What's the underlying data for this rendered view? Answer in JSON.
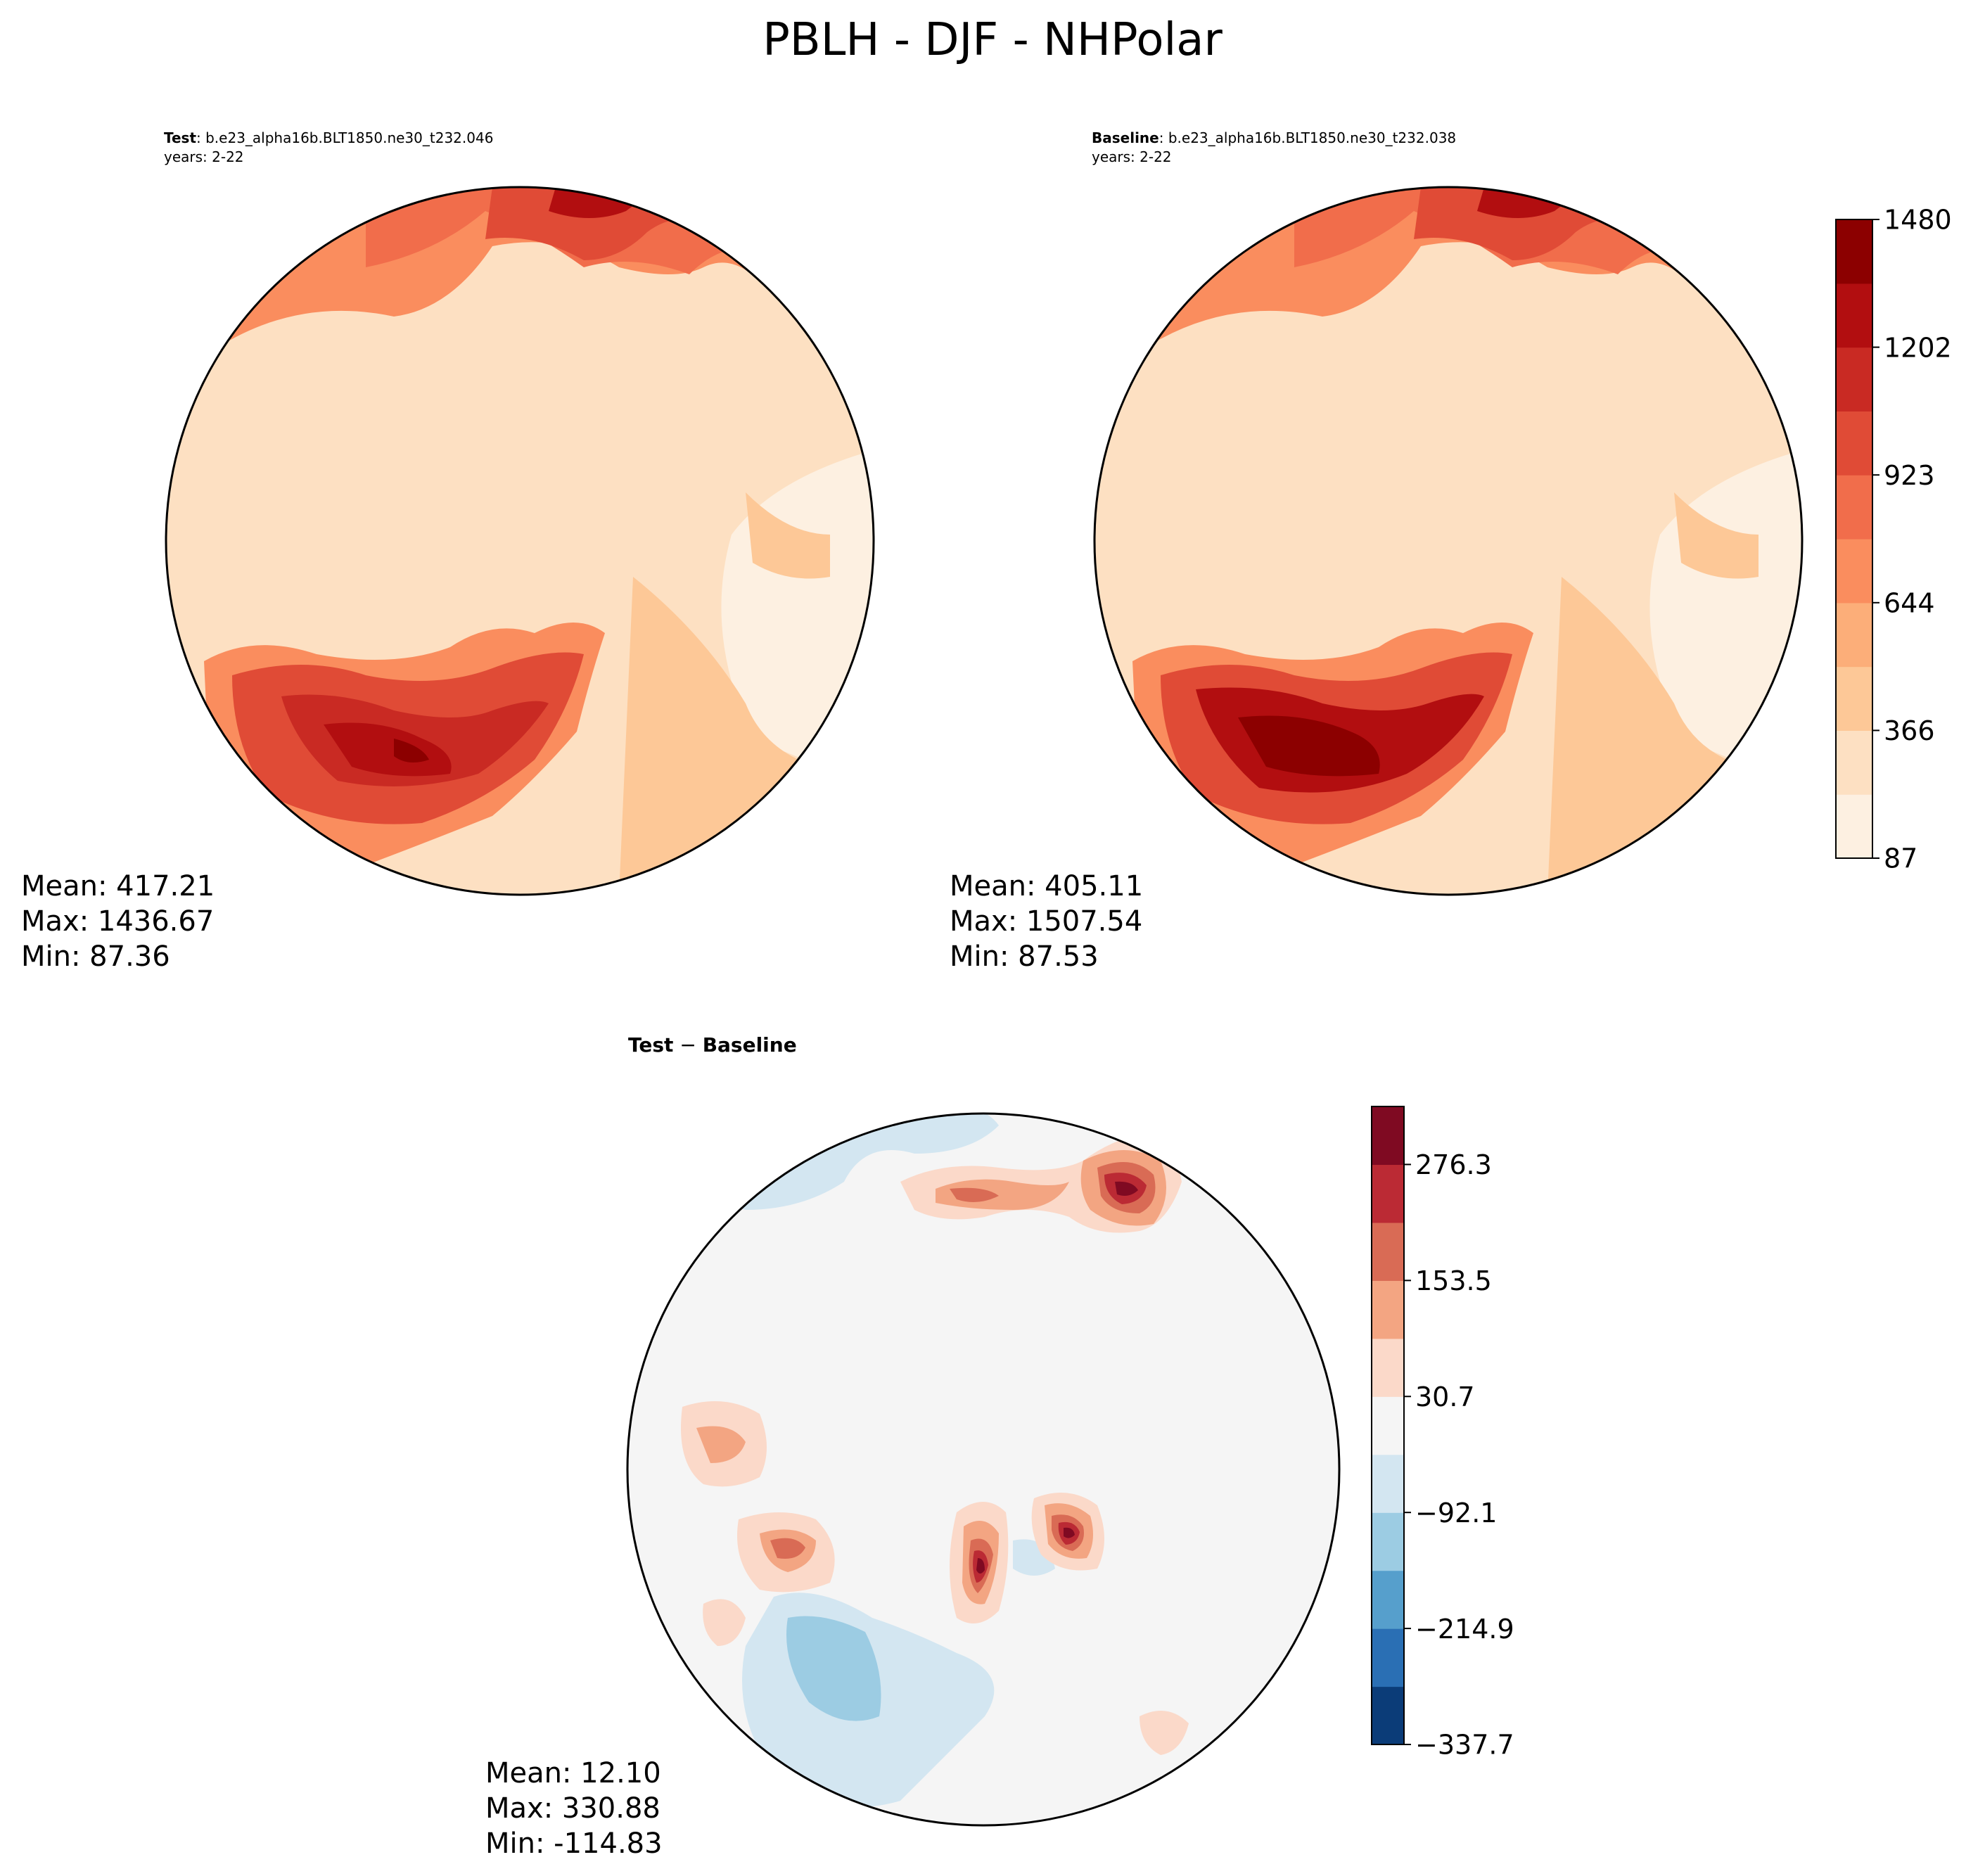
{
  "figure_title": "PBLH - DJF - NHPolar",
  "panels": [
    {
      "id": "test",
      "header_bold": "Test",
      "header_rest": ": b.e23_alpha16b.BLT1850.ne30_t232.046",
      "subheader": "years: 2-22",
      "stats": {
        "mean": "Mean: 417.21",
        "max": "Max: 1436.67",
        "min": "Min: 87.36"
      }
    },
    {
      "id": "baseline",
      "header_bold": "Baseline",
      "header_rest": ": b.e23_alpha16b.BLT1850.ne30_t232.038",
      "subheader": "years: 2-22",
      "stats": {
        "mean": "Mean: 405.11",
        "max": "Max: 1507.54",
        "min": "Min: 87.53"
      }
    },
    {
      "id": "diff",
      "header_bold": "Test",
      "header_rest": " − ",
      "header_bold2": "Baseline",
      "stats": {
        "mean": "Mean: 12.10",
        "max": "Max: 330.88",
        "min": "Min: -114.83"
      }
    }
  ],
  "colorbars": {
    "absolute": {
      "ticks": [
        "87",
        "366",
        "644",
        "923",
        "1202",
        "1480"
      ],
      "colors": [
        "#fdf0e1",
        "#fde0c2",
        "#fdc897",
        "#fcae79",
        "#fa8d5e",
        "#f16d4b",
        "#e04b36",
        "#c92a23",
        "#b20e10",
        "#8c0000"
      ]
    },
    "difference": {
      "ticks": [
        "−337.7",
        "−214.9",
        "−92.1",
        "30.7",
        "153.5",
        "276.3"
      ],
      "colors": [
        "#0b3c78",
        "#2a6fb4",
        "#569fcc",
        "#9ccce3",
        "#d3e6f1",
        "#f5f5f5",
        "#fbd9c9",
        "#f3a582",
        "#d96b55",
        "#bb2a34",
        "#7f0a22"
      ]
    }
  },
  "chart_data": [
    {
      "type": "heatmap",
      "title": "Test : b.e23_alpha16b.BLT1850.ne30_t232.046",
      "subtitle": "years: 2-22",
      "variable": "PBLH",
      "projection": "North polar stereographic",
      "mean": 417.21,
      "max": 1436.67,
      "min": 87.36,
      "colorbar_ticks": [
        87,
        366,
        644,
        923,
        1202,
        1480
      ],
      "colorbar_range": [
        87,
        1620
      ]
    },
    {
      "type": "heatmap",
      "title": "Baseline : b.e23_alpha16b.BLT1850.ne30_t232.038",
      "subtitle": "years: 2-22",
      "variable": "PBLH",
      "projection": "North polar stereographic",
      "mean": 405.11,
      "max": 1507.54,
      "min": 87.53,
      "colorbar_ticks": [
        87,
        366,
        644,
        923,
        1202,
        1480
      ],
      "colorbar_range": [
        87,
        1620
      ]
    },
    {
      "type": "heatmap",
      "title": "Test − Baseline",
      "variable": "PBLH difference",
      "projection": "North polar stereographic",
      "mean": 12.1,
      "max": 330.88,
      "min": -114.83,
      "colorbar_ticks": [
        -337.7,
        -214.9,
        -92.1,
        30.7,
        153.5,
        276.3
      ],
      "colorbar_range": [
        -337.7,
        337.7
      ]
    }
  ]
}
